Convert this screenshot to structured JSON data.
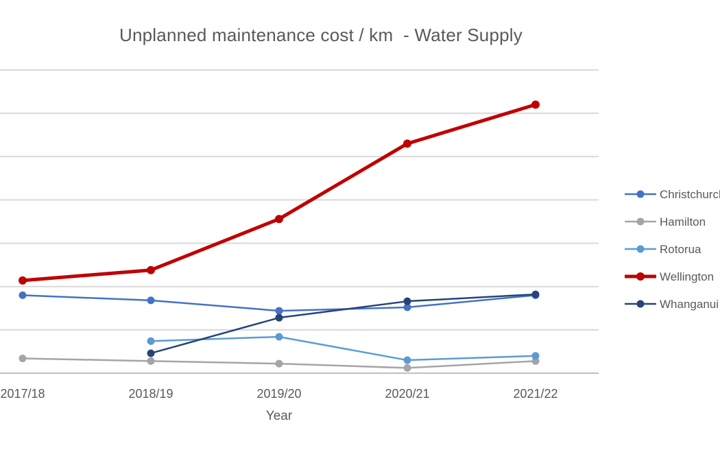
{
  "chart_data": {
    "type": "line",
    "title": "Unplanned maintenance cost / km  - Water Supply",
    "xlabel": "Year",
    "ylabel": "",
    "categories": [
      "2017/18",
      "2018/19",
      "2019/20",
      "2020/21",
      "2021/22"
    ],
    "ylim": [
      0,
      7
    ],
    "grid": true,
    "legend_position": "right",
    "series": [
      {
        "name": "Christchurch",
        "color": "#4472C4",
        "values": [
          1.8,
          1.68,
          1.44,
          1.52,
          1.8
        ]
      },
      {
        "name": "Hamilton",
        "color": "#A5A5A5",
        "values": [
          0.34,
          0.28,
          0.22,
          0.12,
          0.28
        ]
      },
      {
        "name": "Rotorua",
        "color": "#5B9BD5",
        "values": [
          null,
          0.74,
          0.84,
          0.3,
          0.4
        ]
      },
      {
        "name": "Wellington",
        "color": "#C00000",
        "values": [
          2.14,
          2.38,
          3.56,
          5.3,
          6.2
        ]
      },
      {
        "name": "Whanganui",
        "color": "#264478",
        "values": [
          null,
          0.46,
          1.28,
          1.66,
          1.82
        ]
      }
    ]
  }
}
